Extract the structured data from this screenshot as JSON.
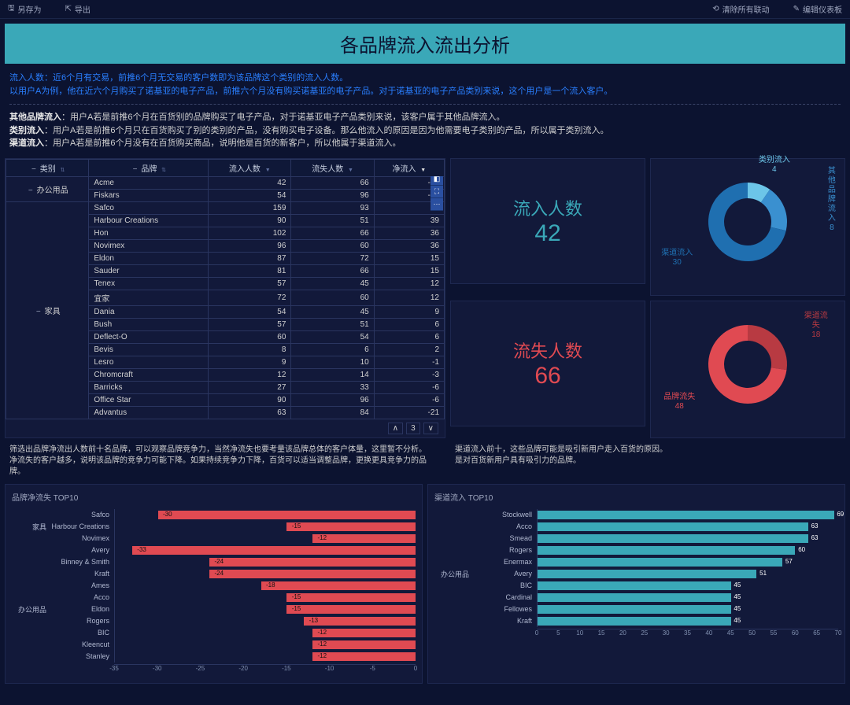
{
  "topbar": {
    "save_as": "另存为",
    "export": "导出",
    "clear_link": "清除所有联动",
    "edit_dash": "编辑仪表板"
  },
  "title": "各品牌流入流出分析",
  "desc": {
    "line1_hl": "流入人数：近6个月有交易，前推6个月无交易的客户数即为该品牌这个类别的流入人数。",
    "line2_hl": "以用户A为例，他在近六个月购买了诺基亚的电子产品，前推六个月没有购买诺基亚的电子产品。对于诺基亚的电子产品类别来说，这个用户是一个流入客户。",
    "line3_b": "其他品牌流入",
    "line3": "：用户A若是前推6个月在百货别的品牌购买了电子产品，对于诺基亚电子产品类别来说，该客户属于其他品牌流入。",
    "line4_b": "类别流入",
    "line4": "：用户A若是前推6个月只在百货购买了别的类别的产品，没有购买电子设备。那么他流入的原因是因为他需要电子类别的产品，所以属于类别流入。",
    "line5_b": "渠道流入",
    "line5": "：用户A若是前推6个月没有在百货购买商品，说明他是百货的新客户，所以他属于渠道流入。"
  },
  "colors": {
    "accent_teal": "#3aa8b8",
    "red": "#e04a52",
    "blue_light": "#5ab0e0",
    "blue_mid": "#3a90d0",
    "blue_dark": "#1f6fb0",
    "donut_red": "#e04a52",
    "donut_red_dark": "#b83a42"
  },
  "table": {
    "headers": [
      "类别",
      "品牌",
      "流入人数",
      "流失人数",
      "净流入"
    ],
    "page": "3",
    "groups": [
      {
        "category": "办公用品",
        "rows": [
          {
            "brand": "Acme",
            "in": 42,
            "out": 66,
            "net": -24
          },
          {
            "brand": "Fiskars",
            "in": 54,
            "out": 96,
            "net": -42
          }
        ]
      },
      {
        "category": "家具",
        "rows": [
          {
            "brand": "Safco",
            "in": 159,
            "out": 93,
            "net": 66
          },
          {
            "brand": "Harbour Creations",
            "in": 90,
            "out": 51,
            "net": 39
          },
          {
            "brand": "Hon",
            "in": 102,
            "out": 66,
            "net": 36
          },
          {
            "brand": "Novimex",
            "in": 96,
            "out": 60,
            "net": 36
          },
          {
            "brand": "Eldon",
            "in": 87,
            "out": 72,
            "net": 15
          },
          {
            "brand": "Sauder",
            "in": 81,
            "out": 66,
            "net": 15
          },
          {
            "brand": "Tenex",
            "in": 57,
            "out": 45,
            "net": 12
          },
          {
            "brand": "宜家",
            "in": 72,
            "out": 60,
            "net": 12
          },
          {
            "brand": "Dania",
            "in": 54,
            "out": 45,
            "net": 9
          },
          {
            "brand": "Bush",
            "in": 57,
            "out": 51,
            "net": 6
          },
          {
            "brand": "Deflect-O",
            "in": 60,
            "out": 54,
            "net": 6
          },
          {
            "brand": "Bevis",
            "in": 8,
            "out": 6,
            "net": 2
          },
          {
            "brand": "Lesro",
            "in": 9,
            "out": 10,
            "net": -1
          },
          {
            "brand": "Chromcraft",
            "in": 12,
            "out": 14,
            "net": -3
          },
          {
            "brand": "Barricks",
            "in": 27,
            "out": 33,
            "net": -6
          },
          {
            "brand": "Office Star",
            "in": 90,
            "out": 96,
            "net": -6
          },
          {
            "brand": "Advantus",
            "in": 63,
            "out": 84,
            "net": -21
          }
        ]
      }
    ]
  },
  "inflow": {
    "label": "流入人数",
    "value": 42,
    "color": "#3aa8b8",
    "donut": [
      {
        "label": "类别流入",
        "value": 4,
        "color": "#6cc5e8"
      },
      {
        "label": "其他品牌流入",
        "value": 8,
        "color": "#3a90d0"
      },
      {
        "label": "渠道流入",
        "value": 30,
        "color": "#1f6fb0"
      }
    ]
  },
  "outflow": {
    "label": "流失人数",
    "value": 66,
    "color": "#e04a52",
    "donut": [
      {
        "label": "渠道流失",
        "value": 18,
        "color": "#b83a42"
      },
      {
        "label": "品牌流失",
        "value": 48,
        "color": "#e04a52"
      }
    ]
  },
  "notes": {
    "left1": "筛选出品牌净流出人数前十名品牌，可以观察品牌竞争力，当然净流失也要考量该品牌总体的客户体量，这里暂不分析。",
    "left2": "净流失的客户越多，说明该品牌的竞争力可能下降。如果持续竞争力下降，百货可以适当调整品牌，更换更具竞争力的品牌。",
    "right1": "渠道流入前十，这些品牌可能是吸引新用户走入百货的原因。",
    "right2": "是对百货新用户具有吸引力的品牌。"
  },
  "bar_left": {
    "title": "品牌净流失 TOP10",
    "color": "#e04a52",
    "xmin": -35,
    "xmax": 0,
    "xtick_step": 5,
    "groups": [
      {
        "cat": "家具",
        "bars": [
          {
            "label": "Safco",
            "value": -30
          },
          {
            "label": "Harbour Creations",
            "value": -15
          },
          {
            "label": "Novimex",
            "value": -12
          }
        ]
      },
      {
        "cat": "办公用品",
        "bars": [
          {
            "label": "Avery",
            "value": -33
          },
          {
            "label": "Binney & Smith",
            "value": -24
          },
          {
            "label": "Kraft",
            "value": -24
          },
          {
            "label": "Ames",
            "value": -18
          },
          {
            "label": "Acco",
            "value": -15
          },
          {
            "label": "Eldon",
            "value": -15
          },
          {
            "label": "Rogers",
            "value": -13
          },
          {
            "label": "BIC",
            "value": -12
          },
          {
            "label": "Kleencut",
            "value": -12
          },
          {
            "label": "Stanley",
            "value": -12
          }
        ]
      }
    ]
  },
  "bar_right": {
    "title": "渠道流入 TOP10",
    "color": "#3aa8b8",
    "xmin": 0,
    "xmax": 70,
    "xtick_step": 5,
    "groups": [
      {
        "cat": "办公用品",
        "bars": [
          {
            "label": "Stockwell",
            "value": 69
          },
          {
            "label": "Acco",
            "value": 63
          },
          {
            "label": "Smead",
            "value": 63
          },
          {
            "label": "Rogers",
            "value": 60
          },
          {
            "label": "Enermax",
            "value": 57
          },
          {
            "label": "Avery",
            "value": 51
          },
          {
            "label": "BIC",
            "value": 45
          },
          {
            "label": "Cardinal",
            "value": 45
          },
          {
            "label": "Fellowes",
            "value": 45
          },
          {
            "label": "Kraft",
            "value": 45
          }
        ]
      }
    ]
  }
}
